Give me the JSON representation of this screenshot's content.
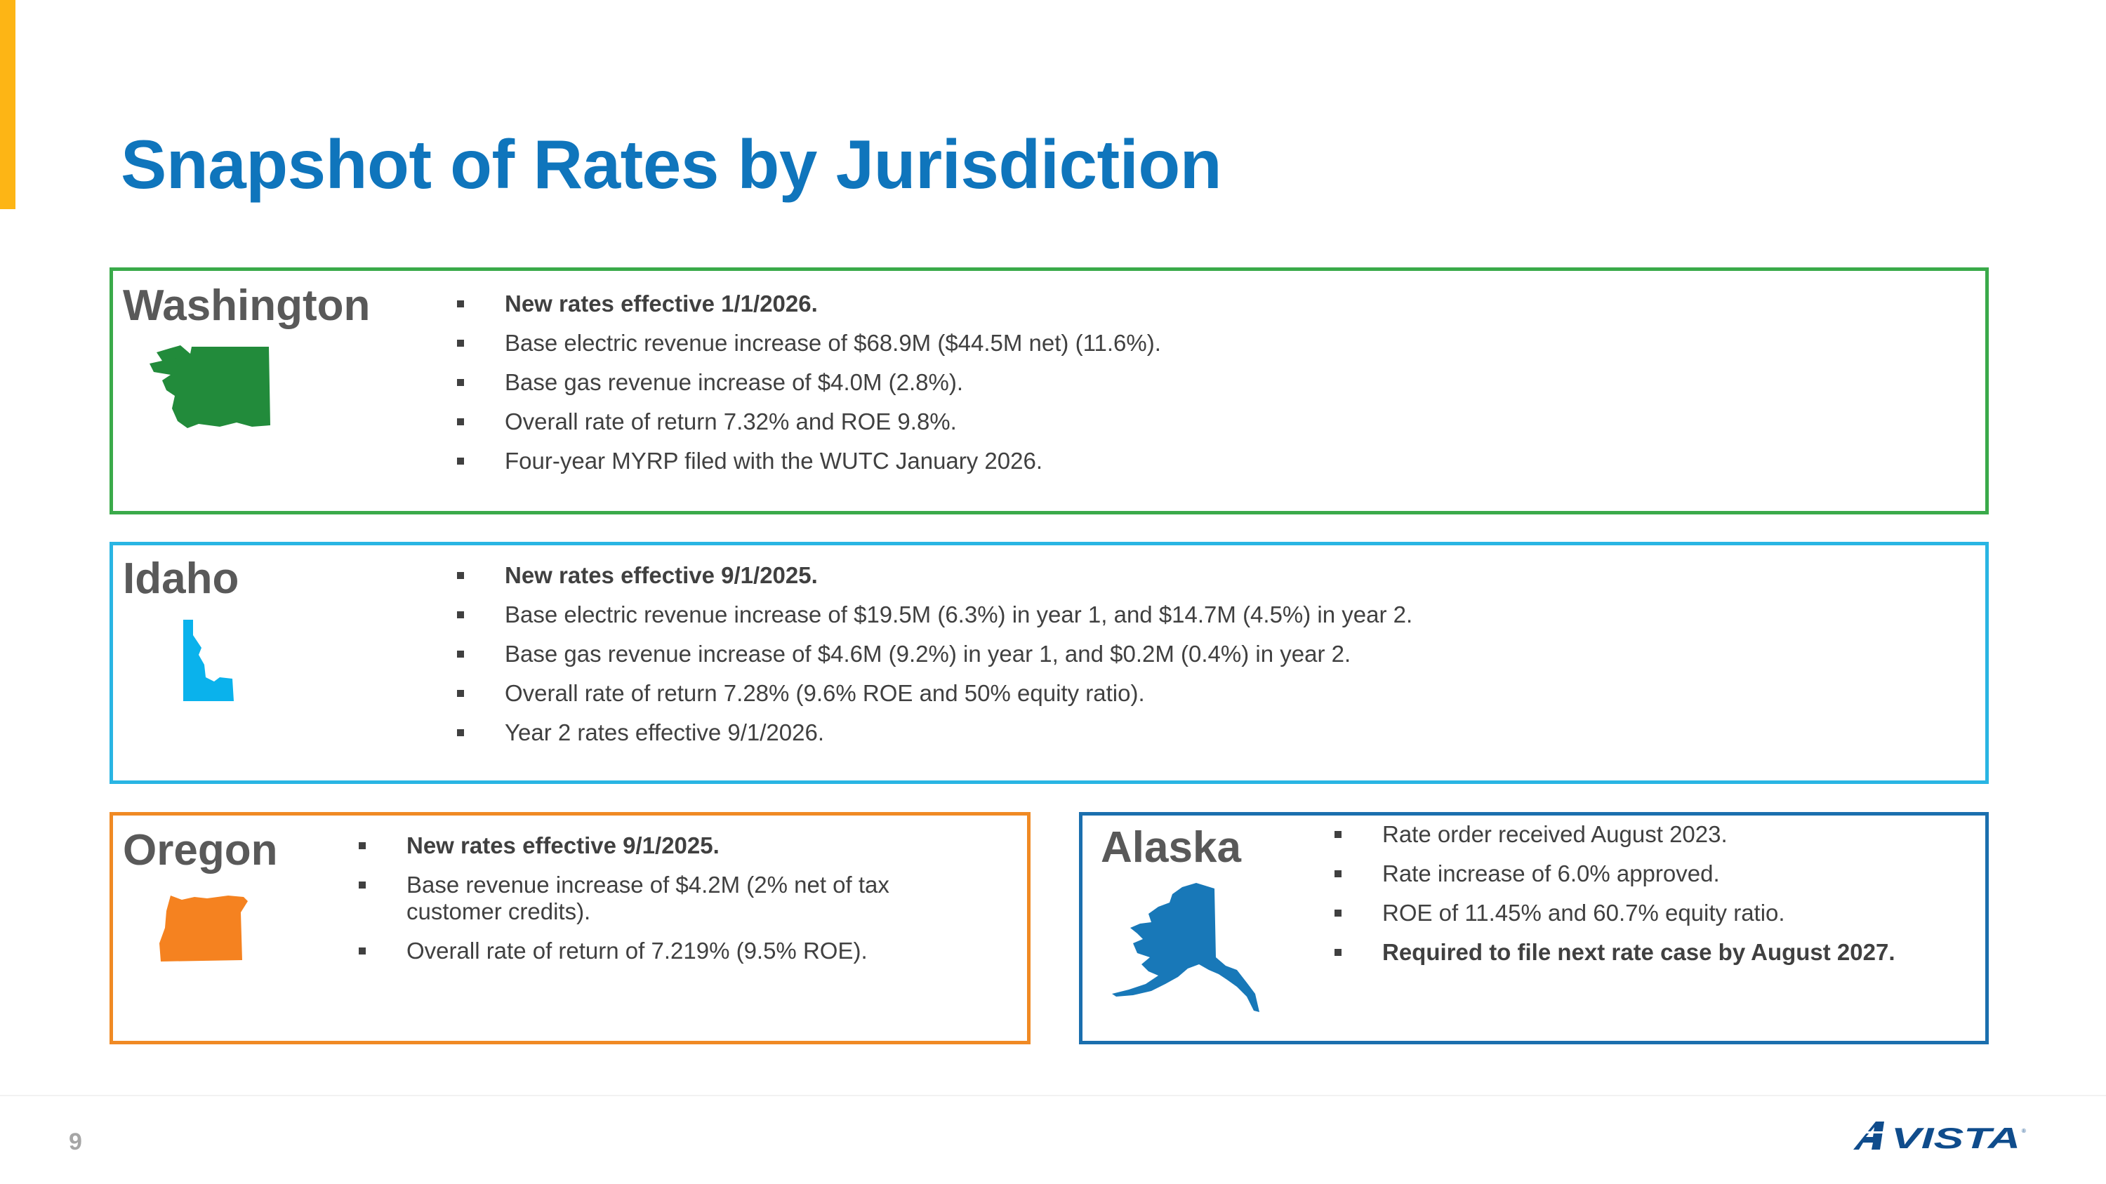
{
  "title": "Snapshot of Rates by Jurisdiction",
  "colors": {
    "accent": "#FDB515",
    "title": "#0F75BC",
    "washington": "#3AAA4A",
    "idaho": "#29B5E3",
    "oregon": "#F08A24",
    "alaska": "#1B6FAE",
    "logo": "#0F4C8C"
  },
  "panels": {
    "washington": {
      "name": "Washington",
      "map_icon": "washington-state-map",
      "bullets": [
        "New rates effective 1/1/2026.",
        "Base electric revenue increase of $68.9M ($44.5M net) (11.6%).",
        "Base gas revenue increase of $4.0M (2.8%).",
        "Overall rate of return 7.32% and ROE 9.8%.",
        "Four-year MYRP filed with the WUTC January 2026."
      ]
    },
    "idaho": {
      "name": "Idaho",
      "map_icon": "idaho-state-map",
      "bullets": [
        "New rates effective 9/1/2025.",
        "Base electric revenue increase of $19.5M (6.3%) in year 1, and $14.7M (4.5%) in year 2.",
        "Base gas revenue increase of $4.6M (9.2%) in year 1, and $0.2M (0.4%) in year 2.",
        "Overall rate of return 7.28% (9.6% ROE and 50% equity ratio).",
        "Year 2 rates effective 9/1/2026."
      ]
    },
    "oregon": {
      "name": "Oregon",
      "map_icon": "oregon-state-map",
      "bullets": [
        "New rates effective 9/1/2025.",
        "Base revenue increase of $4.2M (2% net of tax customer credits).",
        "Overall rate of return of 7.219% (9.5% ROE)."
      ]
    },
    "alaska": {
      "name": "Alaska",
      "map_icon": "alaska-state-map",
      "bullets": [
        "Rate order received August 2023.",
        "Rate increase of 6.0% approved.",
        "ROE of 11.45% and 60.7% equity ratio.",
        "Required to file next rate case by August 2027."
      ]
    }
  },
  "footer": {
    "page_number": "9",
    "logo_text": "AVISTA"
  }
}
